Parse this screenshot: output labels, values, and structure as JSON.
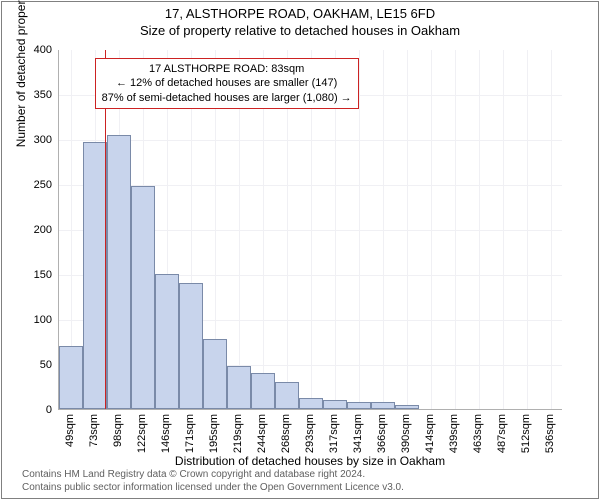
{
  "header": {
    "address": "17, ALSTHORPE ROAD, OAKHAM, LE15 6FD",
    "subtitle": "Size of property relative to detached houses in Oakham"
  },
  "chart": {
    "type": "histogram",
    "ylabel": "Number of detached properties",
    "xlabel": "Distribution of detached houses by size in Oakham",
    "ylim": [
      0,
      400
    ],
    "ytick_step": 50,
    "background_color": "#ffffff",
    "grid_color": "#f0f0f4",
    "bar_fill": "#c8d4ec",
    "bar_stroke": "#7a8aa8",
    "ref_line_color": "#cc2222",
    "ref_value_x_index": 1.4,
    "categories": [
      "49sqm",
      "73sqm",
      "98sqm",
      "122sqm",
      "146sqm",
      "171sqm",
      "195sqm",
      "219sqm",
      "244sqm",
      "268sqm",
      "293sqm",
      "317sqm",
      "341sqm",
      "366sqm",
      "390sqm",
      "414sqm",
      "439sqm",
      "463sqm",
      "487sqm",
      "512sqm",
      "536sqm"
    ],
    "values": [
      70,
      297,
      305,
      248,
      150,
      140,
      78,
      48,
      40,
      30,
      12,
      10,
      8,
      8,
      5,
      0,
      0,
      0,
      0,
      0,
      0
    ],
    "bar_width": 1.0
  },
  "infobox": {
    "line1": "17 ALSTHORPE ROAD: 83sqm",
    "line2": "← 12% of detached houses are smaller (147)",
    "line3": "87% of semi-detached houses are larger (1,080) →"
  },
  "footer": {
    "line1": "Contains HM Land Registry data © Crown copyright and database right 2024.",
    "line2": "Contains public sector information licensed under the Open Government Licence v3.0."
  }
}
